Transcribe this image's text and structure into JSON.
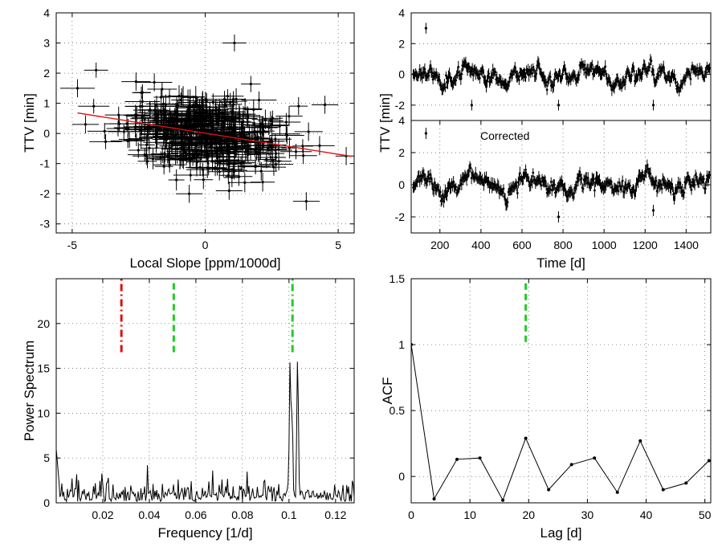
{
  "chart_data": [
    {
      "id": "scatter",
      "type": "scatter",
      "xlabel": "Local Slope [ppm/1000d]",
      "ylabel": "TTV [min]",
      "xlim": [
        -5.6,
        5.6
      ],
      "ylim": [
        -3.3,
        4
      ],
      "xticks": [
        -5,
        0,
        5
      ],
      "yticks": [
        -3,
        -2,
        -1,
        0,
        1,
        2,
        3,
        4
      ],
      "grid": true,
      "trend_line": {
        "x": [
          -4.8,
          5.5
        ],
        "y": [
          0.68,
          -0.76
        ],
        "color": "#e01010"
      },
      "outliers": [
        {
          "x": 1.1,
          "y": 3.0,
          "xerr": 0.45,
          "yerr": 0.28
        },
        {
          "x": -4.8,
          "y": 1.5,
          "xerr": 0.65,
          "yerr": 0.3
        },
        {
          "x": -4.1,
          "y": 2.1,
          "xerr": 0.45,
          "yerr": 0.25
        },
        {
          "x": -2.6,
          "y": 1.72,
          "xerr": 0.55,
          "yerr": 0.3
        },
        {
          "x": 4.5,
          "y": 0.95,
          "xerr": 0.5,
          "yerr": 0.3
        },
        {
          "x": 0.9,
          "y": -1.9,
          "xerr": 0.5,
          "yerr": 0.3
        },
        {
          "x": 3.8,
          "y": -2.25,
          "xerr": 0.5,
          "yerr": 0.3
        },
        {
          "x": -0.6,
          "y": -2.0,
          "xerr": 0.5,
          "yerr": 0.3
        },
        {
          "x": -4.5,
          "y": 0.3,
          "xerr": 0.5,
          "yerr": 0.3
        },
        {
          "x": 5.3,
          "y": -0.75,
          "xerr": 0.4,
          "yerr": 0.3
        }
      ],
      "cloud_points": 520,
      "cloud_seed": 7,
      "cloud_spread": {
        "x_sd": 1.5,
        "y_sd": 0.6
      },
      "error_bar_typical": {
        "xerr": 0.45,
        "yerr": 0.28
      }
    },
    {
      "id": "ttv_raw",
      "type": "scatter",
      "xlabel": "",
      "ylabel": "TTV [min]",
      "xlim": [
        60,
        1520
      ],
      "ylim": [
        -3,
        4
      ],
      "yticks": [
        -2,
        0,
        2,
        4
      ],
      "grid": true,
      "series": [
        {
          "cadence_days": 4.0,
          "start": 70,
          "end": 1515,
          "seed": 11,
          "sd": 0.55,
          "yerr": 0.3,
          "highlight": [
            {
              "x": 132,
              "y": 3.0
            },
            {
              "x": 355,
              "y": -2.0
            },
            {
              "x": 778,
              "y": -2.0
            },
            {
              "x": 1240,
              "y": -2.0
            }
          ]
        }
      ]
    },
    {
      "id": "ttv_corrected",
      "type": "scatter",
      "xlabel": "Time [d]",
      "ylabel": "",
      "annotation": "Corrected",
      "xlim": [
        60,
        1520
      ],
      "ylim": [
        -3,
        4
      ],
      "xticks": [
        200,
        400,
        600,
        800,
        1000,
        1200,
        1400
      ],
      "yticks": [
        -2,
        0,
        2,
        4
      ],
      "grid": true,
      "series": [
        {
          "cadence_days": 4.0,
          "start": 70,
          "end": 1515,
          "seed": 23,
          "sd": 0.55,
          "yerr": 0.3,
          "highlight": [
            {
              "x": 132,
              "y": 3.2
            },
            {
              "x": 778,
              "y": -2.0
            },
            {
              "x": 1240,
              "y": -1.6
            }
          ]
        }
      ]
    },
    {
      "id": "power",
      "type": "line",
      "xlabel": "Frequency [1/d]",
      "ylabel": "Power Spectrum",
      "xlim": [
        0,
        0.128
      ],
      "ylim": [
        0,
        25
      ],
      "xticks": [
        0.02,
        0.04,
        0.06,
        0.08,
        0.1,
        0.12
      ],
      "yticks": [
        0,
        5,
        10,
        15,
        20
      ],
      "grid": true,
      "peaks": [
        {
          "x": 0.1005,
          "y": 16.3
        },
        {
          "x": 0.1013,
          "y": 10.5
        },
        {
          "x": 0.1037,
          "y": 16.4
        }
      ],
      "markers": [
        {
          "x": 0.028,
          "y0": 16.8,
          "y1": 25,
          "color": "#e01010",
          "dash": "dashdot"
        },
        {
          "x": 0.0505,
          "y0": 16.8,
          "y1": 25,
          "color": "#22cc22",
          "dash": "dash"
        },
        {
          "x": 0.1015,
          "y0": 16.8,
          "y1": 25,
          "color": "#22cc22",
          "dash": "dashdot"
        }
      ]
    },
    {
      "id": "acf",
      "type": "line",
      "xlabel": "Lag [d]",
      "ylabel": "ACF",
      "xlim": [
        0,
        51
      ],
      "ylim": [
        -0.2,
        1.5
      ],
      "xticks": [
        0,
        10,
        20,
        30,
        40,
        50
      ],
      "yticks": [
        0,
        0.5,
        1,
        1.5
      ],
      "grid": true,
      "x": [
        0,
        3.9,
        7.8,
        11.7,
        15.6,
        19.5,
        23.4,
        27.3,
        31.2,
        35.1,
        39.0,
        42.9,
        46.8,
        50.7
      ],
      "y": [
        1.0,
        -0.17,
        0.13,
        0.14,
        -0.18,
        0.29,
        -0.1,
        0.09,
        0.14,
        -0.12,
        0.27,
        -0.1,
        -0.05,
        0.12
      ],
      "markers": [
        {
          "x": 19.5,
          "y0": 1.02,
          "y1": 1.5,
          "color": "#22cc22",
          "dash": "dash"
        }
      ]
    }
  ]
}
